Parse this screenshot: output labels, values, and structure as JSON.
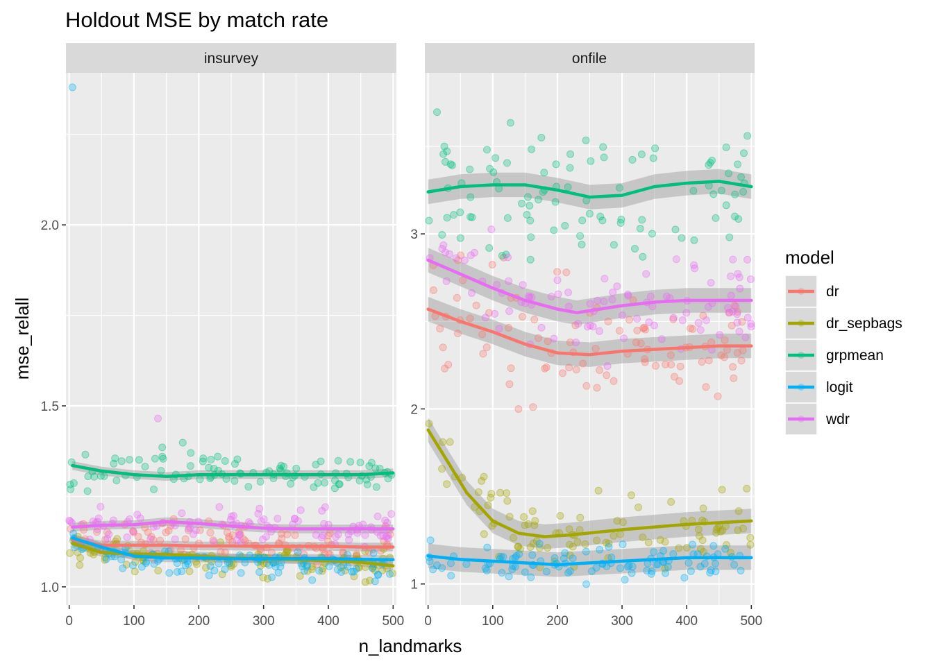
{
  "chart_data": {
    "type": "scatter",
    "title": "Holdout MSE by match rate",
    "xlabel": "n_landmarks",
    "ylabel": "mse_relall",
    "grid": true,
    "legend": {
      "title": "model",
      "placement": "right"
    },
    "series_colors": {
      "dr": "#F8766D",
      "dr_sepbags": "#A3A500",
      "grpmean": "#00BF7D",
      "logit": "#00B0F6",
      "wdr": "#E76BF3"
    },
    "series_names": [
      "dr",
      "dr_sepbags",
      "grpmean",
      "logit",
      "wdr"
    ],
    "panels": [
      {
        "strip": "insurvey",
        "xlim": [
          -5,
          505
        ],
        "ylim": [
          0.95,
          2.42
        ],
        "x_ticks": [
          0,
          100,
          200,
          300,
          400,
          500
        ],
        "x_tick_labels": [
          "0",
          "100",
          "200",
          "300",
          "400",
          "500"
        ],
        "y_ticks": [
          1.0,
          1.5,
          2.0
        ],
        "y_tick_labels": [
          "1.0",
          "1.5",
          "2.0"
        ],
        "smooths": {
          "dr": [
            [
              5,
              1.13
            ],
            [
              50,
              1.115
            ],
            [
              100,
              1.115
            ],
            [
              150,
              1.115
            ],
            [
              200,
              1.113
            ],
            [
              250,
              1.113
            ],
            [
              300,
              1.112
            ],
            [
              350,
              1.112
            ],
            [
              400,
              1.112
            ],
            [
              450,
              1.11
            ],
            [
              500,
              1.11
            ]
          ],
          "dr_sepbags": [
            [
              5,
              1.12
            ],
            [
              50,
              1.095
            ],
            [
              100,
              1.09
            ],
            [
              150,
              1.09
            ],
            [
              200,
              1.085
            ],
            [
              250,
              1.08
            ],
            [
              300,
              1.078
            ],
            [
              350,
              1.075
            ],
            [
              400,
              1.072
            ],
            [
              450,
              1.068
            ],
            [
              500,
              1.058
            ]
          ],
          "grpmean": [
            [
              5,
              1.335
            ],
            [
              50,
              1.32
            ],
            [
              100,
              1.31
            ],
            [
              150,
              1.305
            ],
            [
              200,
              1.31
            ],
            [
              250,
              1.31
            ],
            [
              300,
              1.31
            ],
            [
              350,
              1.31
            ],
            [
              400,
              1.31
            ],
            [
              450,
              1.31
            ],
            [
              500,
              1.315
            ]
          ],
          "logit": [
            [
              5,
              1.135
            ],
            [
              50,
              1.11
            ],
            [
              100,
              1.085
            ],
            [
              150,
              1.08
            ],
            [
              200,
              1.08
            ],
            [
              250,
              1.078
            ],
            [
              300,
              1.078
            ],
            [
              350,
              1.078
            ],
            [
              400,
              1.078
            ],
            [
              450,
              1.076
            ],
            [
              500,
              1.075
            ]
          ],
          "wdr": [
            [
              5,
              1.165
            ],
            [
              50,
              1.17
            ],
            [
              100,
              1.172
            ],
            [
              150,
              1.18
            ],
            [
              200,
              1.175
            ],
            [
              250,
              1.168
            ],
            [
              300,
              1.162
            ],
            [
              350,
              1.16
            ],
            [
              400,
              1.16
            ],
            [
              450,
              1.16
            ],
            [
              500,
              1.16
            ]
          ]
        },
        "scatter": {
          "dr": {
            "mean": [
              [
                0,
                1.14
              ],
              [
                500,
                1.11
              ]
            ],
            "spread": 0.035
          },
          "dr_sepbags": {
            "mean": [
              [
                0,
                1.11
              ],
              [
                100,
                1.08
              ],
              [
                500,
                1.06
              ]
            ],
            "spread": 0.03
          },
          "grpmean": {
            "mean": [
              [
                0,
                1.33
              ],
              [
                500,
                1.31
              ]
            ],
            "spread": 0.04
          },
          "logit": {
            "mean": [
              [
                0,
                1.12
              ],
              [
                100,
                1.07
              ],
              [
                500,
                1.06
              ]
            ],
            "spread": 0.025
          },
          "wdr": {
            "mean": [
              [
                0,
                1.17
              ],
              [
                500,
                1.16
              ]
            ],
            "spread": 0.035
          }
        },
        "outliers": [
          {
            "series": "logit",
            "x": 5,
            "y": 2.38
          },
          {
            "series": "wdr",
            "x": 137,
            "y": 1.465
          }
        ]
      },
      {
        "strip": "onfile",
        "xlim": [
          -5,
          505
        ],
        "ylim": [
          0.88,
          3.92
        ],
        "x_ticks": [
          0,
          100,
          200,
          300,
          400,
          500
        ],
        "x_tick_labels": [
          "0",
          "100",
          "200",
          "300",
          "400",
          "500"
        ],
        "y_ticks": [
          1,
          2,
          3
        ],
        "y_tick_labels": [
          "1",
          "2",
          "3"
        ],
        "smooths": {
          "dr": [
            [
              0,
              2.57
            ],
            [
              50,
              2.5
            ],
            [
              100,
              2.44
            ],
            [
              150,
              2.37
            ],
            [
              200,
              2.32
            ],
            [
              250,
              2.31
            ],
            [
              300,
              2.33
            ],
            [
              350,
              2.34
            ],
            [
              400,
              2.35
            ],
            [
              450,
              2.36
            ],
            [
              500,
              2.36
            ]
          ],
          "dr_sepbags": [
            [
              0,
              1.88
            ],
            [
              30,
              1.7
            ],
            [
              60,
              1.52
            ],
            [
              100,
              1.36
            ],
            [
              140,
              1.29
            ],
            [
              180,
              1.27
            ],
            [
              220,
              1.28
            ],
            [
              300,
              1.31
            ],
            [
              400,
              1.34
            ],
            [
              500,
              1.36
            ]
          ],
          "grpmean": [
            [
              0,
              3.24
            ],
            [
              50,
              3.27
            ],
            [
              100,
              3.28
            ],
            [
              150,
              3.28
            ],
            [
              200,
              3.25
            ],
            [
              250,
              3.21
            ],
            [
              300,
              3.22
            ],
            [
              350,
              3.27
            ],
            [
              400,
              3.29
            ],
            [
              450,
              3.3
            ],
            [
              500,
              3.27
            ]
          ],
          "logit": [
            [
              0,
              1.16
            ],
            [
              50,
              1.14
            ],
            [
              100,
              1.13
            ],
            [
              150,
              1.12
            ],
            [
              200,
              1.11
            ],
            [
              250,
              1.12
            ],
            [
              300,
              1.13
            ],
            [
              350,
              1.14
            ],
            [
              400,
              1.15
            ],
            [
              450,
              1.15
            ],
            [
              500,
              1.15
            ]
          ],
          "wdr": [
            [
              0,
              2.85
            ],
            [
              50,
              2.77
            ],
            [
              100,
              2.69
            ],
            [
              150,
              2.62
            ],
            [
              200,
              2.57
            ],
            [
              230,
              2.55
            ],
            [
              300,
              2.59
            ],
            [
              350,
              2.61
            ],
            [
              400,
              2.62
            ],
            [
              450,
              2.62
            ],
            [
              500,
              2.62
            ]
          ]
        },
        "scatter": {
          "dr": {
            "mean": [
              [
                0,
                2.55
              ],
              [
                100,
                2.43
              ],
              [
                200,
                2.32
              ],
              [
                500,
                2.35
              ]
            ],
            "spread": 0.26
          },
          "dr_sepbags": {
            "mean": [
              [
                0,
                1.88
              ],
              [
                60,
                1.5
              ],
              [
                120,
                1.3
              ],
              [
                200,
                1.27
              ],
              [
                500,
                1.36
              ]
            ],
            "spread": 0.14
          },
          "grpmean": {
            "mean": [
              [
                0,
                3.24
              ],
              [
                250,
                3.21
              ],
              [
                500,
                3.27
              ]
            ],
            "spread": 0.26
          },
          "logit": {
            "mean": [
              [
                0,
                1.16
              ],
              [
                200,
                1.11
              ],
              [
                500,
                1.15
              ]
            ],
            "spread": 0.07
          },
          "wdr": {
            "mean": [
              [
                0,
                2.85
              ],
              [
                230,
                2.55
              ],
              [
                500,
                2.62
              ]
            ],
            "spread": 0.22
          }
        },
        "outliers": []
      }
    ]
  }
}
